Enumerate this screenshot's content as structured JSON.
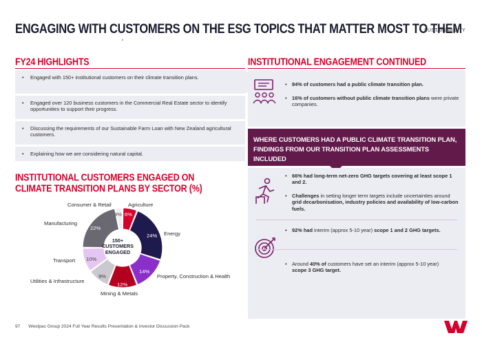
{
  "header": {
    "title": "ENGAGING WITH CUSTOMERS ON THE ESG TOPICS THAT MATTER MOST TO THEM",
    "section": "SUSTAINABILITY"
  },
  "highlights": {
    "heading": "FY24 HIGHLIGHTS",
    "items": [
      "Engaged with 150+ institutional customers on their climate transition plans.",
      "Engaged over 120 business customers in the Commercial Real Estate sector to identify opportunities to support their progress.",
      "Discussing the requirements of our Sustainable Farm Loan with New Zealand agricultural customers.",
      "Explaining how we are considering natural capital."
    ]
  },
  "chart_section": {
    "heading_line1": "INSTITUTIONAL CUSTOMERS ENGAGED ON",
    "heading_line2": "CLIMATE TRANSITION PLANS BY SECTOR (%)",
    "center_line1": "150+",
    "center_line2": "CUSTOMERS",
    "center_line3": "ENGAGED"
  },
  "chart_data": {
    "type": "pie",
    "variant": "donut",
    "segments": [
      {
        "label": "Agriculture",
        "value": 6,
        "display": "6%",
        "color": "#d5002b"
      },
      {
        "label": "Energy",
        "value": 24,
        "display": "24%",
        "color": "#1f1a4d"
      },
      {
        "label": "Property, Construction & Health",
        "value": 14,
        "display": "14%",
        "color": "#8b2fc9"
      },
      {
        "label": "Mining & Metals",
        "value": 12,
        "display": "12%",
        "color": "#b3001f"
      },
      {
        "label": "Utilities & Infrastructure",
        "value": 9,
        "display": "9%",
        "color": "#c9c9cf"
      },
      {
        "label": "Transport",
        "value": 10,
        "display": "10%",
        "color": "#e5c6f2"
      },
      {
        "label": "Manufacturing",
        "value": 22,
        "display": "22%",
        "color": "#6a6870"
      },
      {
        "label": "Consumer & Retail",
        "value": 3,
        "display": "3%",
        "color": "#f0eef2"
      }
    ]
  },
  "engagement": {
    "heading": "INSTITUTIONAL ENGAGEMENT CONTINUED",
    "top_items": [
      {
        "bold": "84% of customers had a public climate transition plan.",
        "rest": ""
      },
      {
        "bold": "16% of customers without public climate transition plans",
        "rest": " were private companies."
      }
    ],
    "purple_banner": "WHERE CUSTOMERS HAD A PUBLIC CLIMATE TRANSITION PLAN, FINDINGS FROM OUR TRANSITION PLAN ASSESSMENTS INCLUDED",
    "mid_items": [
      {
        "bold": "66% had long-term net-zero GHG targets covering at least scope 1 and 2.",
        "parts": []
      },
      {
        "bold": "Challenges",
        "parts": [
          " in setting longer term targets include uncertainties around ",
          "grid decarbonisation, industry policies and availability of low-carbon fuels."
        ]
      }
    ],
    "low_items": [
      {
        "a": "92% had",
        "b": " interim (approx 5-10 year) ",
        "c": "scope 1 and 2 GHG targets."
      },
      {
        "a": "Around ",
        "b": "40% of",
        "c": " customers have set an interim (approx 5-10 year) ",
        "d": "scope 3 GHG target."
      }
    ]
  },
  "footer": {
    "page_number": "97",
    "text": "Westpac Group 2024 Full Year Results Presentation & Investor Discussion Pack"
  },
  "icons": {
    "presentation": "presentation-people-icon",
    "hurdle": "hurdle-runner-icon",
    "target": "target-arrow-icon",
    "logo": "westpac-logo"
  }
}
